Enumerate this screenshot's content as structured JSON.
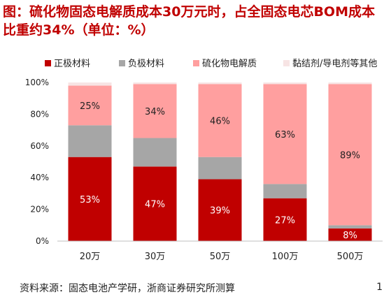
{
  "title": "图：硫化物固态电解质成本30万元时，占全固态电芯BOM成本比重约34%（单位：%）",
  "source": "资料来源：固态电池产学研，浙商证券研究所测算",
  "page_number": "1",
  "colors": {
    "positive": "#c00000",
    "anode": "#a6a6a6",
    "electrolyte": "#ff9f9f",
    "other": "#f7e4e4"
  },
  "chart_data": {
    "type": "bar",
    "stacked": true,
    "categories": [
      "20万",
      "30万",
      "50万",
      "100万",
      "500万"
    ],
    "series": [
      {
        "name": "正极材料",
        "values": [
          53,
          47,
          39,
          27,
          8
        ]
      },
      {
        "name": "负极材料",
        "values": [
          20,
          18,
          14,
          9,
          2
        ]
      },
      {
        "name": "硫化物电解质",
        "values": [
          25,
          34,
          46,
          63,
          89
        ]
      },
      {
        "name": "黏结剂/导电剂等其他",
        "values": [
          2,
          1,
          1,
          1,
          1
        ]
      }
    ],
    "data_labels": {
      "正极材料": [
        "53%",
        "47%",
        "39%",
        "27%",
        "8%"
      ],
      "硫化物电解质": [
        "25%",
        "34%",
        "46%",
        "63%",
        "89%"
      ]
    },
    "ylim": [
      0,
      100
    ],
    "yticks": [
      "0%",
      "20%",
      "40%",
      "60%",
      "80%",
      "100%"
    ],
    "legend": "top",
    "grid": false,
    "xlabel": "",
    "ylabel": ""
  }
}
